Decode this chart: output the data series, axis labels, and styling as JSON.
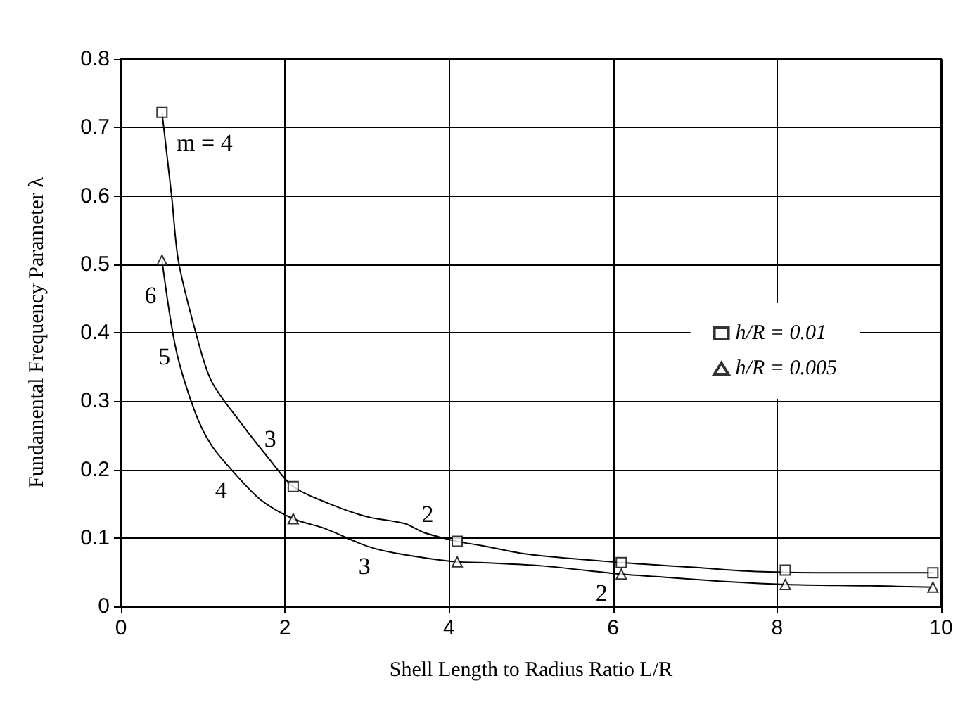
{
  "chart_data": {
    "type": "line",
    "xlabel": "Shell Length to Radius Ratio L/R",
    "ylabel": "Fundamental Frequency Parameter λ",
    "xlim": [
      0,
      10
    ],
    "xticks": [
      0,
      2,
      4,
      6,
      8,
      10
    ],
    "ylim": [
      0,
      0.8
    ],
    "yticks": [
      0,
      0.1,
      0.2,
      0.3,
      0.4,
      0.5,
      0.6,
      0.7,
      0.8
    ],
    "grid": true,
    "legend": "right",
    "series": [
      {
        "color": "#000000",
        "marker": "none",
        "line_style": "solid",
        "x": [
          0.5,
          0.62,
          0.7,
          0.91,
          1.1,
          1.45,
          1.79,
          2.1,
          2.54,
          3.0,
          3.46,
          3.69,
          4.1,
          4.39,
          4.97,
          6.1,
          7.1,
          7.74,
          8.77,
          9.9
        ],
        "values": [
          0.722,
          0.597,
          0.505,
          0.401,
          0.33,
          0.27,
          0.218,
          0.175,
          0.15,
          0.131,
          0.121,
          0.108,
          0.095,
          0.089,
          0.076,
          0.064,
          0.056,
          0.051,
          0.049,
          0.049
        ]
      },
      {
        "color": "#000000",
        "marker": "none",
        "line_style": "solid",
        "x": [
          0.5,
          0.67,
          0.9,
          1.1,
          1.39,
          1.71,
          2.1,
          2.48,
          3.0,
          3.34,
          4.1,
          4.39,
          5.15,
          6.1,
          6.59,
          7.4,
          8.1,
          9.13,
          9.9
        ],
        "values": [
          0.506,
          0.376,
          0.285,
          0.236,
          0.194,
          0.155,
          0.128,
          0.114,
          0.088,
          0.078,
          0.065,
          0.064,
          0.059,
          0.047,
          0.043,
          0.036,
          0.032,
          0.03,
          0.028
        ]
      },
      {
        "type": "scatter",
        "name": "h/R = 0.01",
        "color": "#000000",
        "marker": "square",
        "x": [
          0.5,
          2.1,
          4.1,
          6.1,
          8.1,
          9.9
        ],
        "values": [
          0.722,
          0.175,
          0.095,
          0.064,
          0.053,
          0.049
        ]
      },
      {
        "type": "scatter",
        "name": "h/R = 0.005",
        "color": "#000000",
        "marker": "triangle",
        "x": [
          0.5,
          2.1,
          4.1,
          6.1,
          8.1,
          9.9
        ],
        "values": [
          0.506,
          0.128,
          0.065,
          0.047,
          0.032,
          0.028
        ]
      }
    ],
    "annotations": [
      {
        "text": "m = 4",
        "x": 1.02,
        "y": 0.678
      },
      {
        "text": "6",
        "x": 0.36,
        "y": 0.455
      },
      {
        "text": "5",
        "x": 0.53,
        "y": 0.365
      },
      {
        "text": "3",
        "x": 1.82,
        "y": 0.245
      },
      {
        "text": "4",
        "x": 1.22,
        "y": 0.17
      },
      {
        "text": "2",
        "x": 3.74,
        "y": 0.135
      },
      {
        "text": "3",
        "x": 2.97,
        "y": 0.059
      },
      {
        "text": "2",
        "x": 5.86,
        "y": 0.02
      }
    ]
  }
}
